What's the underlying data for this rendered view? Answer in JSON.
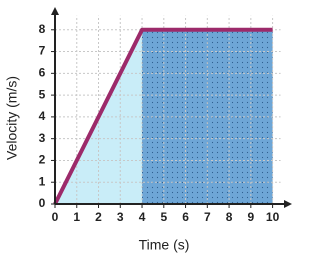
{
  "chart_data": {
    "type": "line",
    "x_label": "Time (s)",
    "y_label": "Velocity (m/s)",
    "x": [
      0,
      4,
      10
    ],
    "values": [
      0,
      8,
      8
    ],
    "color": "#9c2a6a",
    "fill_colors": [
      "#c9edf8",
      "#6ea6d6"
    ],
    "xlim": [
      0,
      10.8
    ],
    "ylim": [
      0,
      9
    ],
    "xticks": [
      0,
      1,
      2,
      3,
      4,
      5,
      6,
      7,
      8,
      9,
      10
    ],
    "yticks": [
      0,
      1,
      2,
      3,
      4,
      5,
      6,
      7,
      8
    ],
    "grid": true
  }
}
